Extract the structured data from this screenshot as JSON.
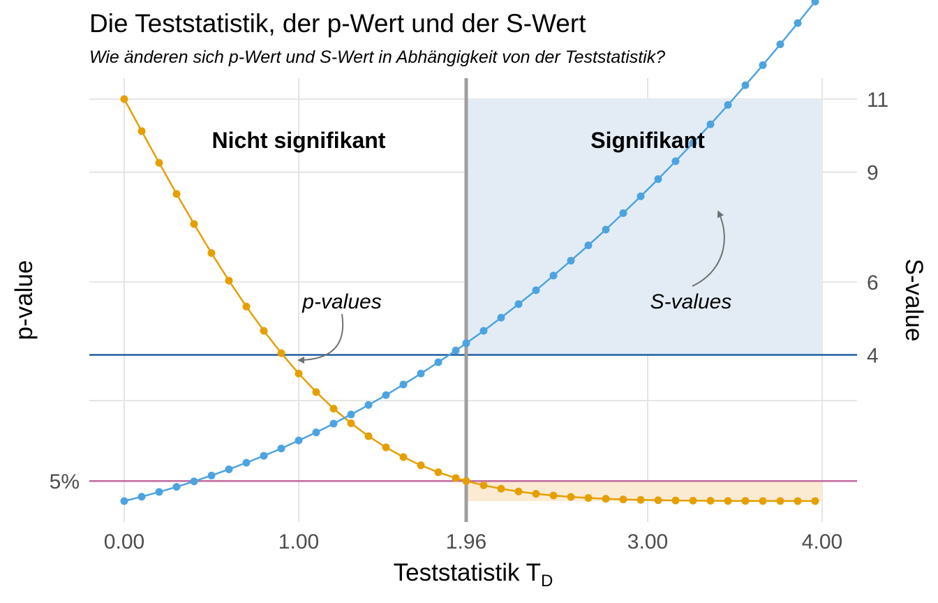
{
  "chart_data": {
    "type": "line",
    "title": "Die Teststatistik, der p-Wert und der S-Wert",
    "subtitle": "Wie änderen sich p-Wert und S-Wert in Abhängigkeit von der Teststatistik?",
    "xlabel": "Teststatistik T",
    "xlabel_subscript": "D",
    "ylabel_left": "p-value",
    "ylabel_right": "S-value",
    "xlim": [
      0,
      4
    ],
    "x_ticks": [
      {
        "value": 0,
        "label": "0.00"
      },
      {
        "value": 1,
        "label": "1.00"
      },
      {
        "value": 1.96,
        "label": "1.96"
      },
      {
        "value": 3,
        "label": "3.00"
      },
      {
        "value": 4,
        "label": "4.00"
      }
    ],
    "left_ticks": [
      {
        "value": 0.05,
        "label": "5%"
      }
    ],
    "right_ticks": [
      {
        "value": 4,
        "label": "4"
      },
      {
        "value": 6,
        "label": "6"
      },
      {
        "value": 9,
        "label": "9"
      },
      {
        "value": 11,
        "label": "11"
      }
    ],
    "regions": [
      {
        "label": "Nicht signifikant",
        "from": 0,
        "to": 1.96
      },
      {
        "label": "Signifikant",
        "from": 1.96,
        "to": 4
      }
    ],
    "critical_value": 1.96,
    "alpha": 0.05,
    "annotations": [
      {
        "label": "p-values"
      },
      {
        "label": "S-values"
      }
    ],
    "series": [
      {
        "name": "p-values",
        "axis": "left",
        "color": "#E69F00",
        "x": [
          0,
          0.1,
          0.2,
          0.3,
          0.4,
          0.5,
          0.6,
          0.7,
          0.8,
          0.9,
          1.0,
          1.1,
          1.2,
          1.3,
          1.4,
          1.5,
          1.6,
          1.7,
          1.8,
          1.9,
          1.96,
          2.06,
          2.16,
          2.26,
          2.36,
          2.46,
          2.56,
          2.66,
          2.76,
          2.86,
          2.96,
          3.06,
          3.16,
          3.26,
          3.36,
          3.46,
          3.56,
          3.66,
          3.76,
          3.86,
          3.96
        ],
        "y": [
          1.0,
          0.9203,
          0.8415,
          0.7642,
          0.6892,
          0.6171,
          0.5485,
          0.4839,
          0.4237,
          0.3681,
          0.3173,
          0.2713,
          0.2301,
          0.1936,
          0.1615,
          0.1336,
          0.1096,
          0.0891,
          0.0719,
          0.0574,
          0.05,
          0.0394,
          0.0308,
          0.0238,
          0.0183,
          0.0139,
          0.0105,
          0.0078,
          0.0058,
          0.0042,
          0.0031,
          0.0022,
          0.0016,
          0.0011,
          0.0008,
          0.0005,
          0.0004,
          0.0003,
          0.0002,
          0.0001,
          0.0001
        ]
      },
      {
        "name": "S-values",
        "axis": "right",
        "color": "#4DA3E0",
        "x": [
          0,
          0.1,
          0.2,
          0.3,
          0.4,
          0.5,
          0.6,
          0.7,
          0.8,
          0.9,
          1.0,
          1.1,
          1.2,
          1.3,
          1.4,
          1.5,
          1.6,
          1.7,
          1.8,
          1.9,
          1.96,
          2.06,
          2.16,
          2.26,
          2.36,
          2.46,
          2.56,
          2.66,
          2.76,
          2.86,
          2.96,
          3.06,
          3.16,
          3.26,
          3.36,
          3.46,
          3.56,
          3.66,
          3.76,
          3.86,
          3.96,
          4.0
        ],
        "y": [
          0,
          0.12,
          0.25,
          0.39,
          0.54,
          0.7,
          0.87,
          1.05,
          1.24,
          1.44,
          1.66,
          1.88,
          2.12,
          2.37,
          2.63,
          2.9,
          3.19,
          3.49,
          3.8,
          4.12,
          4.32,
          4.66,
          5.02,
          5.39,
          5.77,
          6.17,
          6.58,
          7.0,
          7.43,
          7.88,
          8.34,
          8.81,
          9.3,
          9.8,
          10.31,
          10.84,
          11.38,
          11.93,
          12.5,
          13.08,
          13.67,
          14.0
        ]
      }
    ],
    "colors": {
      "p_series": "#E69F00",
      "s_series": "#4DA3E0",
      "significant_fill": "#E3ECF5",
      "p_fill": "#FBEBD3",
      "s_threshold_line": "#1F5FA0",
      "alpha_line": "#C06A9D",
      "critical_line": "#9E9E9E",
      "grid": "#E5E5E5"
    },
    "grid": true,
    "legend": "none"
  }
}
